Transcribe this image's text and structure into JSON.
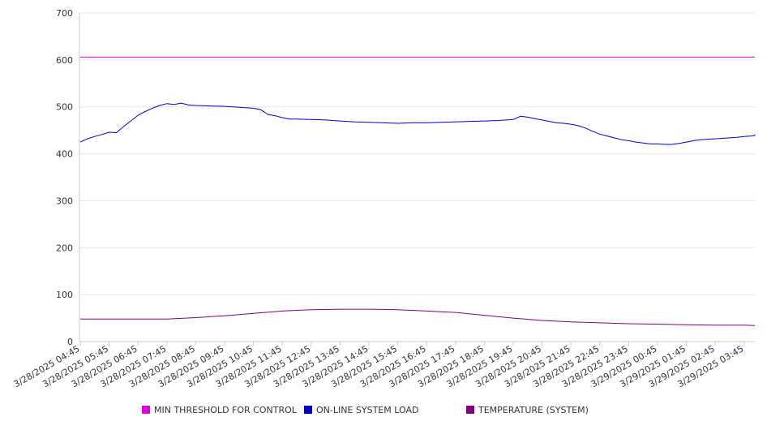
{
  "chart_data": {
    "type": "line",
    "title": "",
    "xlabel": "",
    "ylabel": "",
    "ylim": [
      0,
      700
    ],
    "yticks": [
      0,
      100,
      200,
      300,
      400,
      500,
      600,
      700
    ],
    "grid": true,
    "legend_position": "bottom",
    "x_tick_labels": [
      "3/28/2025 04:45",
      "3/28/2025 05:45",
      "3/28/2025 06:45",
      "3/28/2025 07:45",
      "3/28/2025 08:45",
      "3/28/2025 09:45",
      "3/28/2025 10:45",
      "3/28/2025 11:45",
      "3/28/2025 12:45",
      "3/28/2025 13:45",
      "3/28/2025 14:45",
      "3/28/2025 15:45",
      "3/28/2025 16:45",
      "3/28/2025 17:45",
      "3/28/2025 18:45",
      "3/28/2025 19:45",
      "3/28/2025 20:45",
      "3/28/2025 21:45",
      "3/28/2025 22:45",
      "3/28/2025 23:45",
      "3/29/2025 00:45",
      "3/29/2025 01:45",
      "3/29/2025 02:45",
      "3/29/2025 03:45"
    ],
    "series": [
      {
        "name": "MIN THRESHOLD FOR CONTROL",
        "color": "#e000e0",
        "x": [
          "3/28/2025 04:45",
          "3/29/2025 04:30"
        ],
        "values": [
          606,
          606
        ]
      },
      {
        "name": "ON-LINE SYSTEM LOAD",
        "color": "#0000cc",
        "x": [
          "3/28/2025 04:45",
          "3/28/2025 05:00",
          "3/28/2025 05:15",
          "3/28/2025 05:30",
          "3/28/2025 05:45",
          "3/28/2025 06:00",
          "3/28/2025 06:15",
          "3/28/2025 06:30",
          "3/28/2025 06:45",
          "3/28/2025 07:00",
          "3/28/2025 07:15",
          "3/28/2025 07:30",
          "3/28/2025 07:45",
          "3/28/2025 08:00",
          "3/28/2025 08:15",
          "3/28/2025 08:30",
          "3/28/2025 08:45",
          "3/28/2025 09:15",
          "3/28/2025 09:45",
          "3/28/2025 10:15",
          "3/28/2025 10:45",
          "3/28/2025 11:00",
          "3/28/2025 11:15",
          "3/28/2025 11:30",
          "3/28/2025 11:45",
          "3/28/2025 12:00",
          "3/28/2025 12:15",
          "3/28/2025 12:45",
          "3/28/2025 13:15",
          "3/28/2025 13:45",
          "3/28/2025 14:15",
          "3/28/2025 14:45",
          "3/28/2025 15:15",
          "3/28/2025 15:45",
          "3/28/2025 16:15",
          "3/28/2025 16:45",
          "3/28/2025 17:15",
          "3/28/2025 17:45",
          "3/28/2025 18:15",
          "3/28/2025 18:45",
          "3/28/2025 19:15",
          "3/28/2025 19:45",
          "3/28/2025 20:00",
          "3/28/2025 20:15",
          "3/28/2025 20:30",
          "3/28/2025 20:45",
          "3/28/2025 21:00",
          "3/28/2025 21:15",
          "3/28/2025 21:30",
          "3/28/2025 21:45",
          "3/28/2025 22:00",
          "3/28/2025 22:15",
          "3/28/2025 22:30",
          "3/28/2025 22:45",
          "3/28/2025 23:00",
          "3/28/2025 23:15",
          "3/28/2025 23:30",
          "3/28/2025 23:45",
          "3/29/2025 00:00",
          "3/29/2025 00:15",
          "3/29/2025 00:30",
          "3/29/2025 00:45",
          "3/29/2025 01:00",
          "3/29/2025 01:15",
          "3/29/2025 01:30",
          "3/29/2025 01:45",
          "3/29/2025 02:00",
          "3/29/2025 02:15",
          "3/29/2025 02:30",
          "3/29/2025 02:45",
          "3/29/2025 03:00",
          "3/29/2025 03:15",
          "3/29/2025 03:30",
          "3/29/2025 03:45",
          "3/29/2025 04:00",
          "3/29/2025 04:15",
          "3/29/2025 04:30"
        ],
        "values": [
          425,
          432,
          437,
          441,
          446,
          445,
          458,
          470,
          482,
          490,
          497,
          503,
          507,
          505,
          508,
          504,
          503,
          502,
          501,
          499,
          497,
          494,
          484,
          481,
          477,
          474,
          474,
          473,
          472,
          470,
          468,
          467,
          466,
          465,
          466,
          466,
          467,
          468,
          469,
          470,
          471,
          473,
          480,
          478,
          475,
          472,
          469,
          466,
          465,
          463,
          460,
          455,
          448,
          442,
          438,
          434,
          430,
          428,
          425,
          423,
          421,
          421,
          420,
          420,
          422,
          425,
          428,
          430,
          431,
          432,
          433,
          434,
          435,
          437,
          438,
          439,
          441
        ]
      },
      {
        "name": "TEMPERATURE (SYSTEM)",
        "color": "#800080",
        "x": [
          "3/28/2025 04:45",
          "3/28/2025 05:45",
          "3/28/2025 06:45",
          "3/28/2025 07:45",
          "3/28/2025 08:45",
          "3/28/2025 09:45",
          "3/28/2025 10:45",
          "3/28/2025 11:45",
          "3/28/2025 12:45",
          "3/28/2025 13:45",
          "3/28/2025 14:45",
          "3/28/2025 15:45",
          "3/28/2025 16:45",
          "3/28/2025 17:45",
          "3/28/2025 18:45",
          "3/28/2025 19:45",
          "3/28/2025 20:45",
          "3/28/2025 21:45",
          "3/28/2025 22:45",
          "3/28/2025 23:45",
          "3/29/2025 00:45",
          "3/29/2025 01:45",
          "3/29/2025 02:45",
          "3/29/2025 03:45",
          "3/29/2025 04:30"
        ],
        "values": [
          48,
          48,
          48,
          48,
          51,
          55,
          60,
          65,
          68,
          69,
          69,
          68,
          65,
          62,
          56,
          50,
          45,
          42,
          40,
          38,
          37,
          36,
          35,
          35,
          34
        ]
      }
    ]
  }
}
